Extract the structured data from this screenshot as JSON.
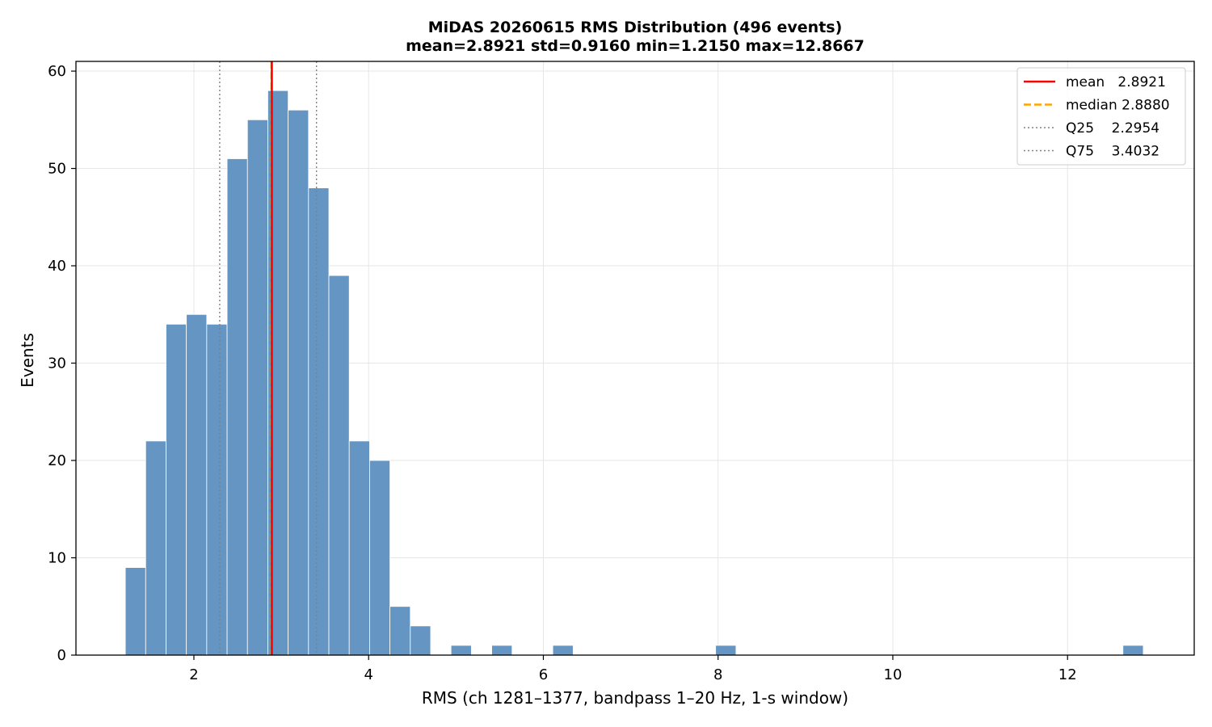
{
  "chart_data": {
    "type": "bar",
    "title": "MiDAS 20260615  RMS Distribution  (496 events)",
    "subtitle": "mean=2.8921  std=0.9160  min=1.2150  max=12.8667",
    "xlabel": "RMS  (ch 1281–1377, bandpass 1–20 Hz, 1-s window)",
    "ylabel": "Events",
    "xlim": [
      0.65,
      13.45
    ],
    "ylim": [
      0,
      61
    ],
    "xticks": [
      2,
      4,
      6,
      8,
      10,
      12
    ],
    "yticks": [
      0,
      10,
      20,
      30,
      40,
      50,
      60
    ],
    "grid": true,
    "bin_width": 0.2329,
    "bar_color": "#6495c3",
    "bins": [
      {
        "x0": 1.215,
        "count": 9
      },
      {
        "x0": 1.448,
        "count": 22
      },
      {
        "x0": 1.681,
        "count": 34
      },
      {
        "x0": 1.914,
        "count": 35
      },
      {
        "x0": 2.147,
        "count": 34
      },
      {
        "x0": 2.38,
        "count": 51
      },
      {
        "x0": 2.613,
        "count": 55
      },
      {
        "x0": 2.846,
        "count": 58
      },
      {
        "x0": 3.079,
        "count": 56
      },
      {
        "x0": 3.312,
        "count": 48
      },
      {
        "x0": 3.545,
        "count": 39
      },
      {
        "x0": 3.778,
        "count": 22
      },
      {
        "x0": 4.011,
        "count": 20
      },
      {
        "x0": 4.244,
        "count": 5
      },
      {
        "x0": 4.477,
        "count": 3
      },
      {
        "x0": 4.943,
        "count": 1
      },
      {
        "x0": 5.409,
        "count": 1
      },
      {
        "x0": 6.108,
        "count": 1
      },
      {
        "x0": 7.972,
        "count": 1
      },
      {
        "x0": 12.634,
        "count": 1
      }
    ],
    "reference_lines": [
      {
        "key": "mean",
        "x": 2.8921,
        "color": "#ff0000",
        "style": "solid"
      },
      {
        "key": "median",
        "x": 2.888,
        "color": "#ffa500",
        "style": "dashed"
      },
      {
        "key": "q25",
        "x": 2.2954,
        "color": "#808080",
        "style": "dotted"
      },
      {
        "key": "q75",
        "x": 3.4032,
        "color": "#808080",
        "style": "dotted"
      }
    ],
    "legend": {
      "position": "top-right",
      "entries": [
        {
          "label": "mean   2.8921",
          "color": "#ff0000",
          "style": "solid"
        },
        {
          "label": "median 2.8880",
          "color": "#ffa500",
          "style": "dashed"
        },
        {
          "label": "Q25    2.2954",
          "color": "#808080",
          "style": "dotted"
        },
        {
          "label": "Q75    3.4032",
          "color": "#808080",
          "style": "dotted"
        }
      ]
    }
  }
}
